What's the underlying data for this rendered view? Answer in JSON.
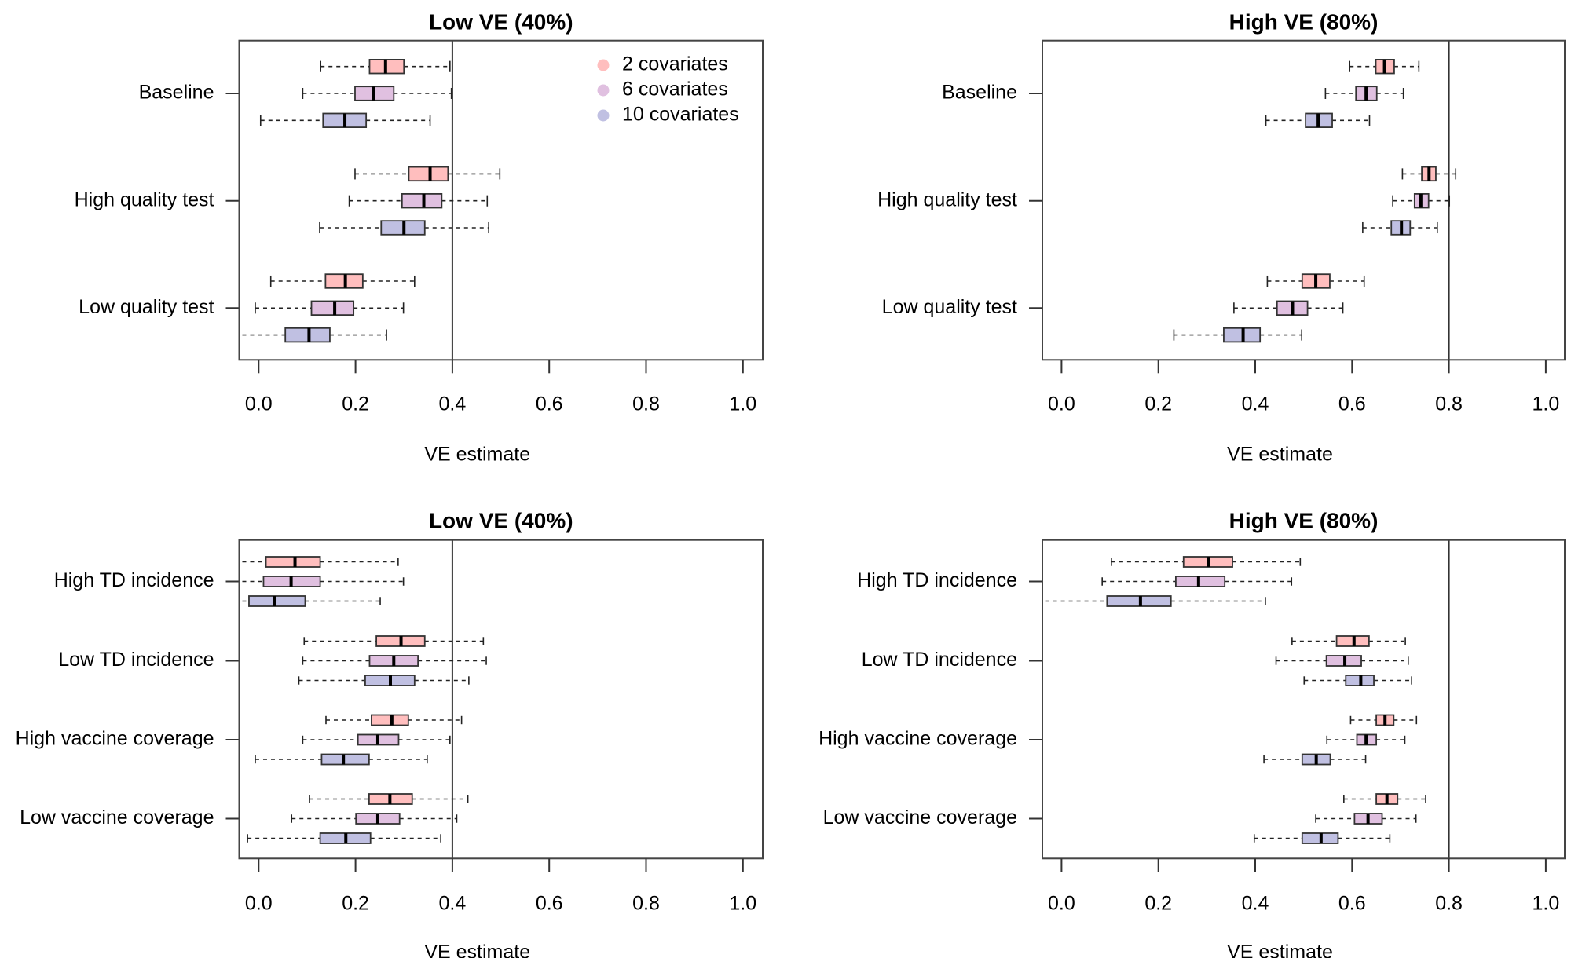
{
  "chart_data": [
    {
      "type": "boxplot-horizontal",
      "title": "Low VE (40%)",
      "xlabel": "VE estimate",
      "xlim": [
        -0.04,
        1.04
      ],
      "xticks": [
        "0.0",
        "0.2",
        "0.4",
        "0.6",
        "0.8",
        "1.0"
      ],
      "reference_line": 0.4,
      "legend": {
        "placement": "top-right",
        "entries": [
          "2 covariates",
          "6 covariates",
          "10 covariates"
        ]
      },
      "groups": [
        {
          "label": "Baseline",
          "boxes": [
            {
              "series": "2 covariates",
              "lo": 0.128,
              "q1": 0.229,
              "median": 0.262,
              "q3": 0.3,
              "hi": 0.395
            },
            {
              "series": "6 covariates",
              "lo": 0.091,
              "q1": 0.199,
              "median": 0.237,
              "q3": 0.279,
              "hi": 0.398
            },
            {
              "series": "10 covariates",
              "lo": 0.004,
              "q1": 0.133,
              "median": 0.178,
              "q3": 0.222,
              "hi": 0.354
            }
          ]
        },
        {
          "label": "High quality test",
          "boxes": [
            {
              "series": "2 covariates",
              "lo": 0.199,
              "q1": 0.31,
              "median": 0.354,
              "q3": 0.391,
              "hi": 0.498
            },
            {
              "series": "6 covariates",
              "lo": 0.187,
              "q1": 0.296,
              "median": 0.341,
              "q3": 0.378,
              "hi": 0.472
            },
            {
              "series": "10 covariates",
              "lo": 0.126,
              "q1": 0.253,
              "median": 0.3,
              "q3": 0.343,
              "hi": 0.475
            }
          ]
        },
        {
          "label": "Low quality test",
          "boxes": [
            {
              "series": "2 covariates",
              "lo": 0.025,
              "q1": 0.138,
              "median": 0.179,
              "q3": 0.215,
              "hi": 0.322
            },
            {
              "series": "6 covariates",
              "lo": -0.007,
              "q1": 0.109,
              "median": 0.157,
              "q3": 0.196,
              "hi": 0.299
            },
            {
              "series": "10 covariates",
              "lo": -0.05,
              "q1": 0.055,
              "median": 0.104,
              "q3": 0.147,
              "hi": 0.264
            }
          ]
        }
      ]
    },
    {
      "type": "boxplot-horizontal",
      "title": "High VE (80%)",
      "xlabel": "VE estimate",
      "xlim": [
        -0.04,
        1.04
      ],
      "xticks": [
        "0.0",
        "0.2",
        "0.4",
        "0.6",
        "0.8",
        "1.0"
      ],
      "reference_line": 0.8,
      "groups": [
        {
          "label": "Baseline",
          "boxes": [
            {
              "series": "2 covariates",
              "lo": 0.595,
              "q1": 0.649,
              "median": 0.667,
              "q3": 0.687,
              "hi": 0.738
            },
            {
              "series": "6 covariates",
              "lo": 0.545,
              "q1": 0.608,
              "median": 0.629,
              "q3": 0.651,
              "hi": 0.706
            },
            {
              "series": "10 covariates",
              "lo": 0.422,
              "q1": 0.504,
              "median": 0.53,
              "q3": 0.559,
              "hi": 0.636
            }
          ]
        },
        {
          "label": "High quality test",
          "boxes": [
            {
              "series": "2 covariates",
              "lo": 0.704,
              "q1": 0.744,
              "median": 0.759,
              "q3": 0.773,
              "hi": 0.814
            },
            {
              "series": "6 covariates",
              "lo": 0.684,
              "q1": 0.729,
              "median": 0.742,
              "q3": 0.758,
              "hi": 0.801
            },
            {
              "series": "10 covariates",
              "lo": 0.622,
              "q1": 0.681,
              "median": 0.702,
              "q3": 0.72,
              "hi": 0.776
            }
          ]
        },
        {
          "label": "Low quality test",
          "boxes": [
            {
              "series": "2 covariates",
              "lo": 0.425,
              "q1": 0.497,
              "median": 0.525,
              "q3": 0.554,
              "hi": 0.625
            },
            {
              "series": "6 covariates",
              "lo": 0.356,
              "q1": 0.445,
              "median": 0.477,
              "q3": 0.508,
              "hi": 0.581
            },
            {
              "series": "10 covariates",
              "lo": 0.232,
              "q1": 0.335,
              "median": 0.375,
              "q3": 0.41,
              "hi": 0.496
            }
          ]
        }
      ]
    },
    {
      "type": "boxplot-horizontal",
      "title": "Low VE (40%)",
      "xlabel": "VE estimate",
      "xlim": [
        -0.04,
        1.04
      ],
      "xticks": [
        "0.0",
        "0.2",
        "0.4",
        "0.6",
        "0.8",
        "1.0"
      ],
      "reference_line": 0.4,
      "groups": [
        {
          "label": "High TD incidence",
          "boxes": [
            {
              "series": "2 covariates",
              "lo": -0.05,
              "q1": 0.015,
              "median": 0.075,
              "q3": 0.127,
              "hi": 0.288
            },
            {
              "series": "6 covariates",
              "lo": -0.05,
              "q1": 0.01,
              "median": 0.067,
              "q3": 0.127,
              "hi": 0.299
            },
            {
              "series": "10 covariates",
              "lo": -0.05,
              "q1": -0.02,
              "median": 0.033,
              "q3": 0.096,
              "hi": 0.251
            }
          ]
        },
        {
          "label": "Low TD incidence",
          "boxes": [
            {
              "series": "2 covariates",
              "lo": 0.094,
              "q1": 0.243,
              "median": 0.294,
              "q3": 0.343,
              "hi": 0.464
            },
            {
              "series": "6 covariates",
              "lo": 0.091,
              "q1": 0.229,
              "median": 0.279,
              "q3": 0.329,
              "hi": 0.47
            },
            {
              "series": "10 covariates",
              "lo": 0.083,
              "q1": 0.22,
              "median": 0.272,
              "q3": 0.322,
              "hi": 0.434
            }
          ]
        },
        {
          "label": "High vaccine coverage",
          "boxes": [
            {
              "series": "2 covariates",
              "lo": 0.139,
              "q1": 0.233,
              "median": 0.275,
              "q3": 0.309,
              "hi": 0.419
            },
            {
              "series": "6 covariates",
              "lo": 0.091,
              "q1": 0.205,
              "median": 0.246,
              "q3": 0.289,
              "hi": 0.395
            },
            {
              "series": "10 covariates",
              "lo": -0.007,
              "q1": 0.13,
              "median": 0.175,
              "q3": 0.228,
              "hi": 0.348
            }
          ]
        },
        {
          "label": "Low vaccine coverage",
          "boxes": [
            {
              "series": "2 covariates",
              "lo": 0.105,
              "q1": 0.228,
              "median": 0.271,
              "q3": 0.317,
              "hi": 0.432
            },
            {
              "series": "6 covariates",
              "lo": 0.068,
              "q1": 0.201,
              "median": 0.246,
              "q3": 0.291,
              "hi": 0.409
            },
            {
              "series": "10 covariates",
              "lo": -0.023,
              "q1": 0.127,
              "median": 0.18,
              "q3": 0.231,
              "hi": 0.376
            }
          ]
        }
      ]
    },
    {
      "type": "boxplot-horizontal",
      "title": "High VE (80%)",
      "xlabel": "VE estimate",
      "xlim": [
        -0.04,
        1.04
      ],
      "xticks": [
        "0.0",
        "0.2",
        "0.4",
        "0.6",
        "0.8",
        "1.0"
      ],
      "reference_line": 0.8,
      "groups": [
        {
          "label": "High TD incidence",
          "boxes": [
            {
              "series": "2 covariates",
              "lo": 0.103,
              "q1": 0.252,
              "median": 0.304,
              "q3": 0.353,
              "hi": 0.493
            },
            {
              "series": "6 covariates",
              "lo": 0.084,
              "q1": 0.236,
              "median": 0.283,
              "q3": 0.337,
              "hi": 0.475
            },
            {
              "series": "10 covariates",
              "lo": -0.05,
              "q1": 0.094,
              "median": 0.163,
              "q3": 0.226,
              "hi": 0.421
            }
          ]
        },
        {
          "label": "Low TD incidence",
          "boxes": [
            {
              "series": "2 covariates",
              "lo": 0.476,
              "q1": 0.568,
              "median": 0.604,
              "q3": 0.635,
              "hi": 0.71
            },
            {
              "series": "6 covariates",
              "lo": 0.443,
              "q1": 0.547,
              "median": 0.585,
              "q3": 0.619,
              "hi": 0.716
            },
            {
              "series": "10 covariates",
              "lo": 0.501,
              "q1": 0.587,
              "median": 0.618,
              "q3": 0.645,
              "hi": 0.723
            }
          ]
        },
        {
          "label": "High vaccine coverage",
          "boxes": [
            {
              "series": "2 covariates",
              "lo": 0.597,
              "q1": 0.65,
              "median": 0.668,
              "q3": 0.686,
              "hi": 0.733
            },
            {
              "series": "6 covariates",
              "lo": 0.548,
              "q1": 0.61,
              "median": 0.629,
              "q3": 0.65,
              "hi": 0.709
            },
            {
              "series": "10 covariates",
              "lo": 0.418,
              "q1": 0.497,
              "median": 0.526,
              "q3": 0.555,
              "hi": 0.628
            }
          ]
        },
        {
          "label": "Low vaccine coverage",
          "boxes": [
            {
              "series": "2 covariates",
              "lo": 0.583,
              "q1": 0.65,
              "median": 0.672,
              "q3": 0.694,
              "hi": 0.752
            },
            {
              "series": "6 covariates",
              "lo": 0.525,
              "q1": 0.605,
              "median": 0.633,
              "q3": 0.662,
              "hi": 0.732
            },
            {
              "series": "10 covariates",
              "lo": 0.398,
              "q1": 0.497,
              "median": 0.536,
              "q3": 0.571,
              "hi": 0.678
            }
          ]
        }
      ]
    }
  ],
  "series_colors": {
    "2 covariates": "#ffbebe",
    "6 covariates": "#e0c0e0",
    "10 covariates": "#c0c0e2"
  }
}
